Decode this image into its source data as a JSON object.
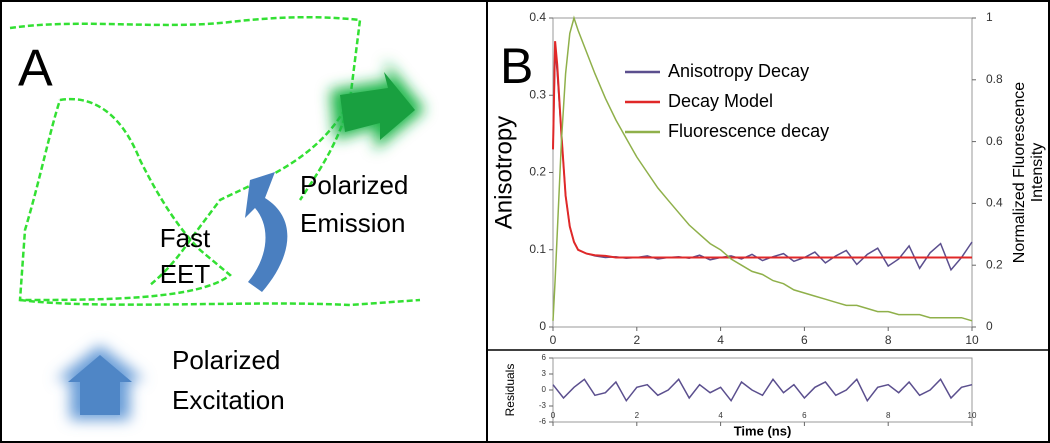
{
  "panel_a": {
    "label": "A",
    "eet": [
      "Fast",
      "EET"
    ],
    "emission": [
      "Polarized",
      "Emission"
    ],
    "excitation": [
      "Polarized",
      "Excitation"
    ]
  },
  "chart_data": [
    {
      "type": "line",
      "panel_label": "B",
      "ylabel": "Anisotropy",
      "y2label": [
        "Normalized Fluorescence",
        "Intensity"
      ],
      "x": [
        0,
        0.05,
        0.1,
        0.2,
        0.3,
        0.4,
        0.5,
        0.6,
        0.8,
        1,
        1.25,
        1.5,
        1.75,
        2,
        2.25,
        2.5,
        2.75,
        3,
        3.25,
        3.5,
        3.75,
        4,
        4.25,
        4.5,
        4.75,
        5,
        5.25,
        5.5,
        5.75,
        6,
        6.25,
        6.5,
        6.75,
        7,
        7.25,
        7.5,
        7.75,
        8,
        8.25,
        8.5,
        8.75,
        9,
        9.25,
        9.5,
        9.75,
        10
      ],
      "series": [
        {
          "name": "Anisotropy Decay",
          "color": "#5b4f8e",
          "values": [
            0.23,
            0.36,
            0.33,
            0.25,
            0.17,
            0.13,
            0.11,
            0.1,
            0.095,
            0.092,
            0.09,
            0.091,
            0.089,
            0.09,
            0.092,
            0.088,
            0.09,
            0.091,
            0.089,
            0.093,
            0.087,
            0.09,
            0.092,
            0.088,
            0.094,
            0.086,
            0.091,
            0.095,
            0.085,
            0.09,
            0.097,
            0.083,
            0.092,
            0.099,
            0.081,
            0.094,
            0.102,
            0.079,
            0.088,
            0.105,
            0.076,
            0.096,
            0.108,
            0.074,
            0.09,
            0.11
          ]
        },
        {
          "name": "Decay Model",
          "color": "#e02828",
          "values": [
            0.23,
            0.37,
            0.34,
            0.25,
            0.17,
            0.13,
            0.11,
            0.1,
            0.095,
            0.093,
            0.092,
            0.09,
            0.09,
            0.09,
            0.09,
            0.09,
            0.09,
            0.09,
            0.09,
            0.09,
            0.09,
            0.09,
            0.09,
            0.09,
            0.09,
            0.09,
            0.09,
            0.09,
            0.09,
            0.09,
            0.09,
            0.09,
            0.09,
            0.09,
            0.09,
            0.09,
            0.09,
            0.09,
            0.09,
            0.09,
            0.09,
            0.09,
            0.09,
            0.09,
            0.09,
            0.09
          ]
        },
        {
          "name": "Fluorescence decay",
          "color": "#8fb04a",
          "axis": "y2",
          "values": [
            0.02,
            0.15,
            0.3,
            0.6,
            0.82,
            0.95,
            1,
            0.96,
            0.89,
            0.82,
            0.74,
            0.67,
            0.61,
            0.55,
            0.5,
            0.45,
            0.41,
            0.37,
            0.33,
            0.3,
            0.27,
            0.25,
            0.22,
            0.2,
            0.18,
            0.17,
            0.15,
            0.14,
            0.12,
            0.11,
            0.1,
            0.09,
            0.08,
            0.07,
            0.07,
            0.06,
            0.05,
            0.05,
            0.04,
            0.04,
            0.04,
            0.03,
            0.03,
            0.03,
            0.03,
            0.02
          ]
        }
      ],
      "xlim": [
        0,
        10
      ],
      "xticks": [
        0,
        2,
        4,
        6,
        8,
        10
      ],
      "ylim": [
        0,
        0.4
      ],
      "yticks": [
        0,
        0.1,
        0.2,
        0.3,
        0.4
      ],
      "y2lim": [
        0,
        1
      ],
      "y2ticks": [
        0,
        0.2,
        0.4,
        0.6,
        0.8,
        1
      ],
      "legend": "top-right"
    },
    {
      "type": "line",
      "ylabel": "Residuals",
      "xlabel": "Time (ns)",
      "x": [
        0,
        0.25,
        0.5,
        0.75,
        1,
        1.25,
        1.5,
        1.75,
        2,
        2.25,
        2.5,
        2.75,
        3,
        3.25,
        3.5,
        3.75,
        4,
        4.25,
        4.5,
        4.75,
        5,
        5.25,
        5.5,
        5.75,
        6,
        6.25,
        6.5,
        6.75,
        7,
        7.25,
        7.5,
        7.75,
        8,
        8.25,
        8.5,
        8.75,
        9,
        9.25,
        9.5,
        9.75,
        10
      ],
      "series": [
        {
          "color": "#5b4f8e",
          "values": [
            1,
            -1.5,
            0.5,
            2,
            -1,
            -0.5,
            1.5,
            -2,
            0.5,
            1,
            -1,
            0,
            2,
            -1.5,
            1,
            -0.5,
            0.5,
            -2,
            1.5,
            0,
            -1,
            2,
            -0.5,
            1,
            -1.5,
            0.5,
            1.5,
            -1,
            0,
            2,
            -2,
            0.5,
            1,
            -0.5,
            1.5,
            -1,
            0,
            2,
            -1.5,
            0.5,
            1
          ]
        }
      ],
      "xlim": [
        0,
        10
      ],
      "xticks": [
        0,
        2,
        4,
        6,
        8,
        10
      ],
      "ylim": [
        -6,
        6
      ],
      "yticks": [
        -6,
        -3,
        0,
        3,
        6
      ]
    }
  ]
}
